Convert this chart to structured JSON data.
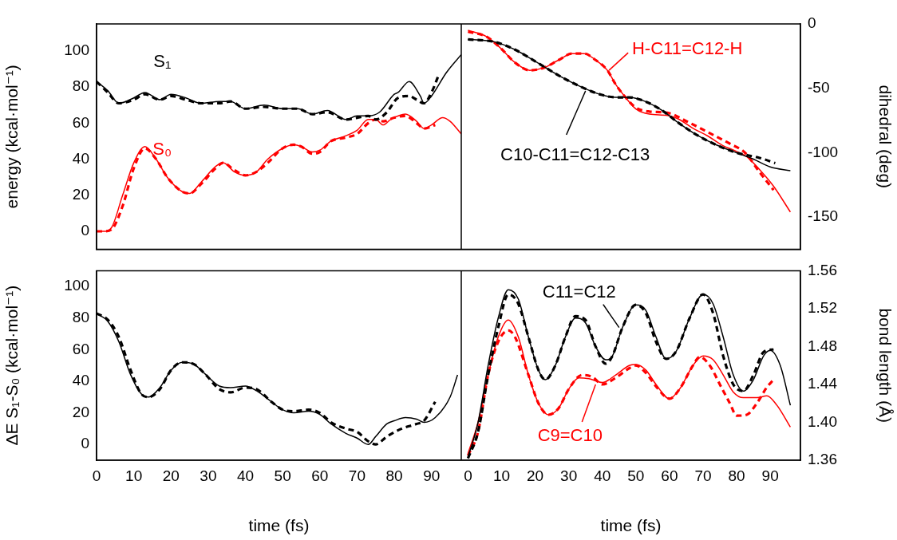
{
  "chart_data": [
    {
      "type": "line",
      "ylabel": "energy (kcal·mol⁻¹)",
      "xlim": [
        0,
        98
      ],
      "xticks": [
        0,
        10,
        20,
        30,
        40,
        50,
        60,
        70,
        80,
        90
      ],
      "ylim": [
        -10,
        115
      ],
      "yticks": [
        0,
        20,
        40,
        60,
        80,
        100
      ],
      "tick_labels": "y",
      "grid": false,
      "legend": false,
      "marker": "none",
      "annotations": [
        "S₁",
        "S₀"
      ],
      "series": [
        {
          "color": "#000000",
          "line_style": "solid",
          "x": [
            0,
            3,
            6,
            10,
            13,
            17,
            20,
            24,
            28,
            33,
            36,
            40,
            45,
            50,
            54,
            58,
            62,
            67,
            70,
            73,
            76,
            80,
            81,
            84,
            87,
            88,
            90,
            94,
            98
          ],
          "values": [
            83,
            78,
            71,
            74,
            77,
            73,
            76,
            74,
            71,
            72,
            72,
            68,
            70,
            68,
            68,
            65,
            67,
            62,
            64,
            64,
            66,
            76,
            77,
            83,
            75,
            71,
            75,
            88,
            98
          ]
        },
        {
          "color": "#000000",
          "line_style": "dashed",
          "x": [
            0,
            3,
            6,
            10,
            13,
            17,
            20,
            24,
            28,
            33,
            36,
            40,
            45,
            50,
            54,
            58,
            62,
            67,
            70,
            73,
            75,
            78,
            81,
            84,
            86,
            88,
            90,
            92
          ],
          "values": [
            83,
            77,
            71,
            73,
            76,
            73,
            75,
            73,
            71,
            71,
            72,
            68,
            69,
            68,
            68,
            65,
            66,
            62,
            63,
            64,
            62,
            66,
            74,
            75,
            73,
            71,
            77,
            87
          ]
        },
        {
          "color": "#ff0000",
          "line_style": "solid",
          "x": [
            0,
            2,
            4,
            7,
            10,
            13,
            16,
            19,
            23,
            25,
            28,
            32,
            34,
            37,
            40,
            43,
            46,
            50,
            53,
            55,
            58,
            60,
            63,
            67,
            70,
            73,
            75,
            77,
            79,
            83,
            86,
            88,
            90,
            93,
            95,
            98
          ],
          "values": [
            0,
            0,
            2,
            20,
            38,
            47,
            40,
            30,
            22,
            21,
            27,
            36,
            38,
            33,
            31,
            33,
            40,
            46,
            48,
            47,
            44,
            45,
            50,
            53,
            56,
            62,
            62,
            59,
            62,
            65,
            61,
            57,
            59,
            63,
            61,
            54
          ]
        },
        {
          "color": "#ff0000",
          "line_style": "dashed",
          "x": [
            0,
            2,
            4,
            7,
            10,
            13,
            16,
            19,
            23,
            25,
            28,
            32,
            34,
            37,
            40,
            43,
            46,
            50,
            53,
            55,
            58,
            60,
            63,
            67,
            70,
            73,
            75,
            77,
            80,
            83,
            86,
            88,
            91
          ],
          "values": [
            0,
            0,
            1,
            14,
            35,
            46,
            40,
            30,
            22,
            21,
            26,
            35,
            38,
            34,
            31,
            33,
            38,
            46,
            48,
            47,
            43,
            44,
            50,
            52,
            54,
            60,
            62,
            61,
            63,
            64,
            60,
            57,
            59
          ]
        }
      ]
    },
    {
      "type": "line",
      "ylabel": "dihedral (deg)",
      "xlim": [
        -2,
        99
      ],
      "xticks": [
        0,
        10,
        20,
        30,
        40,
        50,
        60,
        70,
        80,
        90
      ],
      "ylim": [
        -175,
        0
      ],
      "yticks": [
        -150,
        -100,
        -50,
        0
      ],
      "tick_labels": "y",
      "grid": false,
      "legend": false,
      "marker": "none",
      "annotations": [
        {
          "text": "H-C11=C12-H",
          "x": 42,
          "y": -36
        },
        {
          "text": "C10-C11=C12-C13",
          "x": 35,
          "y": -52
        }
      ],
      "series": [
        {
          "color": "#000000",
          "line_style": "solid",
          "x": [
            0,
            8,
            14,
            20,
            27,
            33.8,
            39.7,
            44,
            48,
            52.6,
            57.7,
            62.8,
            68,
            74,
            80,
            85,
            90,
            96
          ],
          "values": [
            -12,
            -14,
            -20,
            -29,
            -40,
            -49,
            -55,
            -57,
            -57,
            -60,
            -67,
            -77,
            -86,
            -94,
            -100,
            -105,
            -111,
            -114
          ]
        },
        {
          "color": "#000000",
          "line_style": "dashed",
          "x": [
            0,
            8,
            14,
            20,
            27,
            33.8,
            39.7,
            44,
            48,
            52.6,
            57.7,
            62.8,
            68,
            74,
            80,
            86.8,
            91.5
          ],
          "values": [
            -12,
            -14,
            -20,
            -29,
            -40,
            -49,
            -55,
            -57,
            -57,
            -60,
            -67,
            -77,
            -86,
            -94,
            -100,
            -104,
            -108
          ]
        },
        {
          "color": "#ff0000",
          "line_style": "solid",
          "x": [
            0,
            5.6,
            9.8,
            14,
            18.4,
            22.6,
            27,
            31,
            34.6,
            38,
            41.5,
            44,
            46.6,
            50,
            54,
            59.4,
            62.8,
            67,
            71.4,
            75.6,
            80,
            83,
            86.8,
            91,
            96
          ],
          "values": [
            -5,
            -10,
            -19,
            -30,
            -36,
            -34,
            -28,
            -23,
            -23,
            -28,
            -36,
            -47,
            -56,
            -66,
            -70,
            -71,
            -74,
            -81,
            -87,
            -94,
            -99,
            -103,
            -113,
            -126,
            -146
          ]
        },
        {
          "color": "#ff0000",
          "line_style": "dashed",
          "x": [
            0,
            5.6,
            9.8,
            14,
            18.4,
            22.6,
            27,
            31,
            34.6,
            38,
            41.5,
            44,
            46.6,
            50,
            54,
            59.4,
            65.4,
            71.4,
            78,
            82.5,
            86.8,
            91
          ],
          "values": [
            -6,
            -10,
            -19,
            -30,
            -36,
            -34,
            -28,
            -23,
            -23,
            -28,
            -36,
            -47,
            -56,
            -65,
            -68,
            -69,
            -76,
            -84,
            -93,
            -100,
            -115,
            -129
          ]
        }
      ]
    },
    {
      "type": "line",
      "xlabel": "time (fs)",
      "ylabel": "ΔE S₁-S₀ (kcal·mol⁻¹)",
      "xlim": [
        0,
        98
      ],
      "xticks": [
        0,
        10,
        20,
        30,
        40,
        50,
        60,
        70,
        80,
        90
      ],
      "ylim": [
        -10,
        110
      ],
      "yticks": [
        0,
        20,
        40,
        60,
        80,
        100
      ],
      "grid": false,
      "legend": false,
      "marker": "none",
      "series": [
        {
          "color": "#000000",
          "line_style": "solid",
          "x": [
            0,
            3,
            6,
            9,
            12,
            14,
            17,
            20,
            23,
            26,
            29,
            33,
            36,
            40,
            43,
            47,
            50,
            53,
            57,
            60,
            63,
            67,
            70,
            73,
            75,
            78,
            80,
            83,
            86,
            88,
            91,
            95,
            97
          ],
          "values": [
            83,
            78,
            65,
            45,
            32,
            30,
            36,
            47,
            52,
            51,
            45,
            37,
            36,
            37,
            34,
            27,
            22,
            20,
            21,
            19,
            13,
            7,
            4,
            0,
            5,
            13,
            15,
            17,
            16,
            14,
            17,
            30,
            44
          ]
        },
        {
          "color": "#000000",
          "line_style": "dashed",
          "x": [
            0,
            3,
            6,
            9,
            12,
            14,
            17,
            20,
            23,
            26,
            29,
            33,
            36,
            40,
            43,
            47,
            50,
            53,
            57,
            60,
            63,
            67,
            70,
            73,
            75,
            78,
            82,
            86,
            88,
            91
          ],
          "values": [
            83,
            79,
            68,
            48,
            32,
            30,
            35,
            47,
            52,
            51,
            45,
            35,
            33,
            36,
            35,
            27,
            22,
            21,
            22,
            20,
            14,
            10,
            8,
            2,
            0,
            5,
            10,
            13,
            15,
            27
          ]
        }
      ]
    },
    {
      "type": "line",
      "xlabel": "time (fs)",
      "ylabel": "bond length (Å)",
      "xlim": [
        -2,
        99
      ],
      "xticks": [
        0,
        10,
        20,
        30,
        40,
        50,
        60,
        70,
        80,
        90
      ],
      "ylim": [
        1.36,
        1.56
      ],
      "yticks": [
        1.36,
        {
          "value": 1.4,
          "label": "1.40"
        },
        1.44,
        1.48,
        1.52,
        1.56
      ],
      "grid": false,
      "legend": false,
      "marker": "none",
      "annotations": [
        {
          "text": "C11=C12",
          "x": 45,
          "y": 1.5
        },
        {
          "text": "C9=C10",
          "x": 38,
          "y": 1.44
        }
      ],
      "series": [
        {
          "color": "#000000",
          "line_style": "solid",
          "x": [
            0,
            3,
            6,
            9,
            12,
            15,
            18,
            21,
            23,
            26,
            29,
            32,
            35,
            38,
            41,
            43,
            46,
            50,
            53,
            56,
            59,
            62,
            66,
            70,
            73,
            76,
            79,
            82,
            85,
            88,
            90,
            93,
            96
          ],
          "values": [
            1.363,
            1.4,
            1.46,
            1.51,
            1.54,
            1.53,
            1.49,
            1.455,
            1.445,
            1.46,
            1.49,
            1.51,
            1.505,
            1.48,
            1.466,
            1.47,
            1.5,
            1.524,
            1.518,
            1.49,
            1.467,
            1.475,
            1.51,
            1.535,
            1.525,
            1.49,
            1.45,
            1.433,
            1.445,
            1.47,
            1.476,
            1.46,
            1.418
          ]
        },
        {
          "color": "#000000",
          "line_style": "dashed",
          "x": [
            0,
            3,
            6,
            9,
            12,
            15,
            18,
            21,
            23,
            26,
            29,
            32,
            35,
            38,
            41,
            43,
            46,
            50,
            53,
            56,
            59,
            62,
            66,
            70,
            73,
            76,
            79,
            82,
            85,
            88,
            91
          ],
          "values": [
            1.362,
            1.39,
            1.45,
            1.5,
            1.535,
            1.525,
            1.49,
            1.455,
            1.445,
            1.46,
            1.49,
            1.512,
            1.508,
            1.48,
            1.462,
            1.47,
            1.5,
            1.524,
            1.515,
            1.485,
            1.467,
            1.475,
            1.51,
            1.535,
            1.515,
            1.47,
            1.44,
            1.433,
            1.45,
            1.474,
            1.477
          ]
        },
        {
          "color": "#ff0000",
          "line_style": "solid",
          "x": [
            0,
            3,
            6,
            9,
            12,
            15,
            18,
            21,
            24,
            27,
            30,
            33,
            36,
            40,
            44,
            48,
            50,
            53,
            56,
            60,
            63,
            67,
            70,
            73,
            76,
            79,
            82,
            86,
            89,
            92,
            96
          ],
          "values": [
            1.367,
            1.4,
            1.45,
            1.49,
            1.508,
            1.49,
            1.45,
            1.42,
            1.408,
            1.415,
            1.435,
            1.447,
            1.446,
            1.442,
            1.45,
            1.46,
            1.461,
            1.455,
            1.44,
            1.425,
            1.435,
            1.46,
            1.47,
            1.466,
            1.45,
            1.432,
            1.426,
            1.426,
            1.428,
            1.418,
            1.395
          ]
        },
        {
          "color": "#ff0000",
          "line_style": "dashed",
          "x": [
            0,
            3,
            6,
            9,
            12,
            14,
            18,
            21,
            24,
            27,
            30,
            34,
            37,
            40,
            44,
            48,
            50,
            53,
            56,
            60,
            63,
            67,
            69,
            72,
            75,
            78,
            80,
            83,
            86,
            89,
            91
          ],
          "values": [
            1.365,
            1.39,
            1.45,
            1.485,
            1.497,
            1.49,
            1.45,
            1.42,
            1.408,
            1.415,
            1.435,
            1.45,
            1.448,
            1.44,
            1.447,
            1.457,
            1.46,
            1.452,
            1.438,
            1.425,
            1.435,
            1.46,
            1.469,
            1.46,
            1.44,
            1.42,
            1.407,
            1.408,
            1.42,
            1.437,
            1.445
          ]
        }
      ]
    }
  ]
}
